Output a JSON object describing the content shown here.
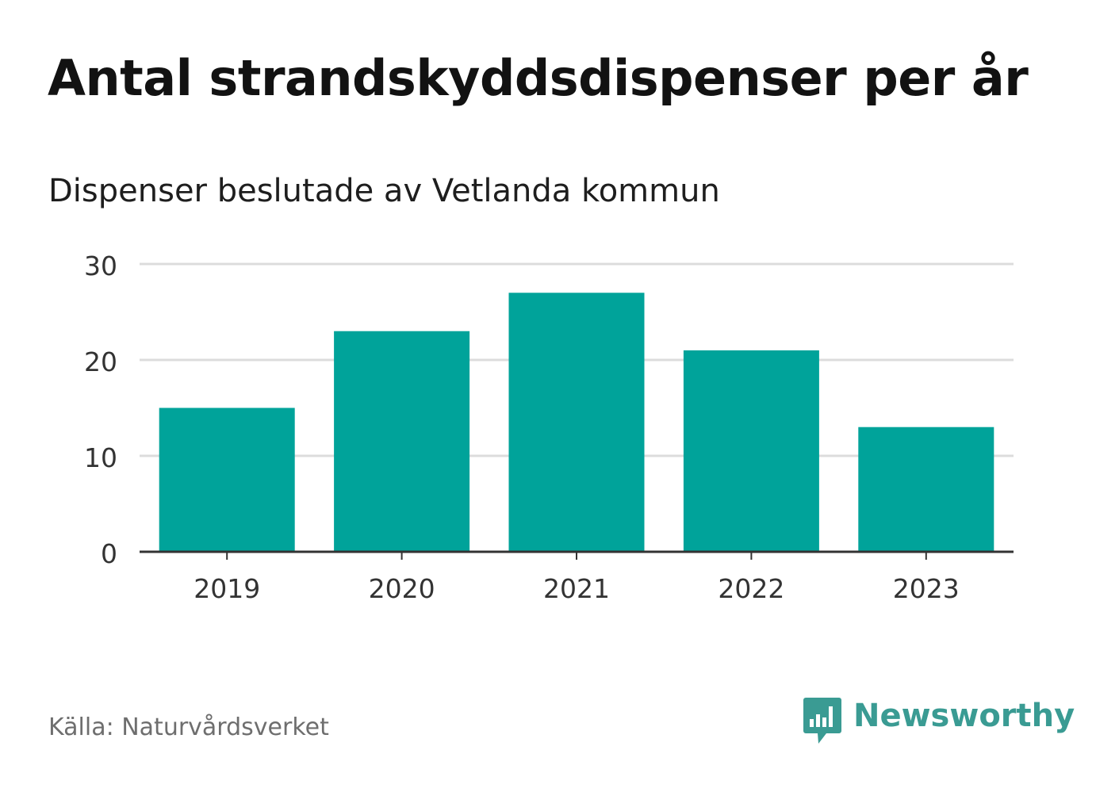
{
  "header": {
    "title": "Antal strandskyddsdispenser per år",
    "subtitle": "Dispenser beslutade av Vetlanda kommun"
  },
  "footer": {
    "source": "Källa: Naturvårdsverket",
    "brand": "Newsworthy",
    "logo_icon": "bar-chart-speech-bubble-icon"
  },
  "colors": {
    "bar": "#00a39a",
    "grid": "#dcdcdc",
    "axis": "#333333",
    "brand": "#3a9b93"
  },
  "chart_data": {
    "type": "bar",
    "categories": [
      "2019",
      "2020",
      "2021",
      "2022",
      "2023"
    ],
    "values": [
      15,
      23,
      27,
      21,
      13
    ],
    "yticks": [
      0,
      10,
      20,
      30
    ],
    "ylim": [
      0,
      30
    ],
    "grid": true,
    "xlabel": "",
    "ylabel": "",
    "title": "Antal strandskyddsdispenser per år",
    "subtitle": "Dispenser beslutade av Vetlanda kommun"
  }
}
